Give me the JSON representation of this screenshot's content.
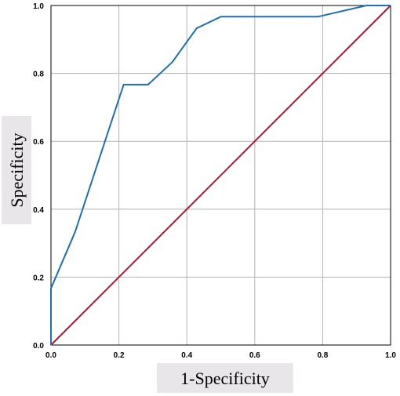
{
  "chart_data": {
    "type": "line",
    "xlabel": "1-Specificity",
    "ylabel": "Specificity",
    "xlim": [
      0,
      1
    ],
    "ylim": [
      0,
      1
    ],
    "x_ticks": [
      "0.0",
      "0.2",
      "0.4",
      "0.6",
      "0.8",
      "1.0"
    ],
    "y_ticks": [
      "0.0",
      "0.2",
      "0.4",
      "0.6",
      "0.8",
      "1.0"
    ],
    "grid": true,
    "series": [
      {
        "color": "#1f6fb8",
        "points": [
          [
            0.0,
            0.0
          ],
          [
            0.0,
            0.167
          ],
          [
            0.071,
            0.333
          ],
          [
            0.214,
            0.767
          ],
          [
            0.286,
            0.767
          ],
          [
            0.357,
            0.833
          ],
          [
            0.429,
            0.933
          ],
          [
            0.5,
            0.967
          ],
          [
            0.786,
            0.967
          ],
          [
            0.929,
            1.0
          ],
          [
            1.0,
            1.0
          ]
        ]
      },
      {
        "color": "#c0102e",
        "points": [
          [
            0,
            0
          ],
          [
            1,
            1
          ]
        ]
      }
    ]
  }
}
